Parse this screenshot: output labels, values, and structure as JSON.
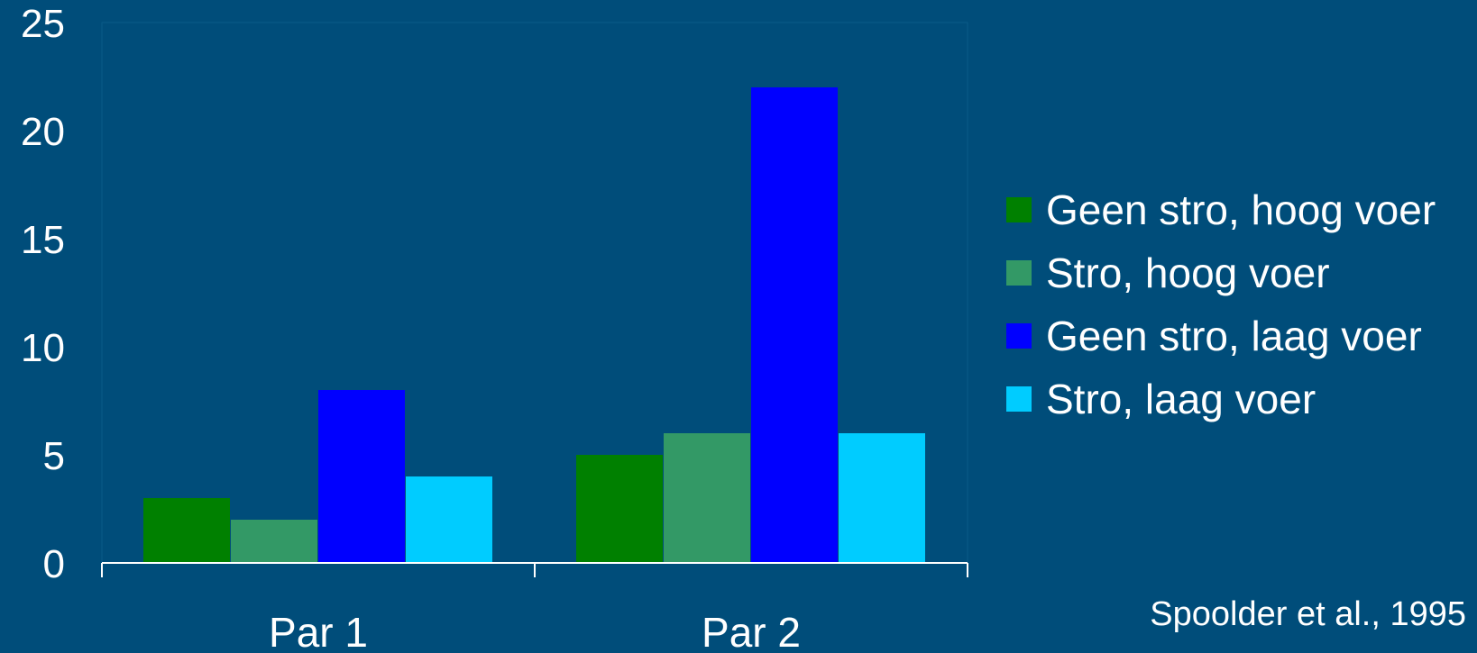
{
  "chart_data": {
    "type": "bar",
    "categories": [
      "Par 1",
      "Par 2"
    ],
    "series": [
      {
        "name": "Geen stro, hoog voer",
        "values": [
          3,
          5
        ],
        "color": "#008000"
      },
      {
        "name": "Stro, hoog voer",
        "values": [
          2,
          6
        ],
        "color": "#339966"
      },
      {
        "name": "Geen stro, laag voer",
        "values": [
          8,
          22
        ],
        "color": "#0000ff"
      },
      {
        "name": "Stro, laag voer",
        "values": [
          4,
          6
        ],
        "color": "#00ccff"
      }
    ],
    "ylim": [
      0,
      25
    ],
    "yticks": [
      "0",
      "5",
      "10",
      "15",
      "20",
      "25"
    ],
    "legend_position": "right",
    "grid": false
  },
  "source": "Spoolder et al., 1995",
  "colors": {
    "background": "#004d7a",
    "plot_area": "#004d7a",
    "axis": "#ffffff"
  }
}
